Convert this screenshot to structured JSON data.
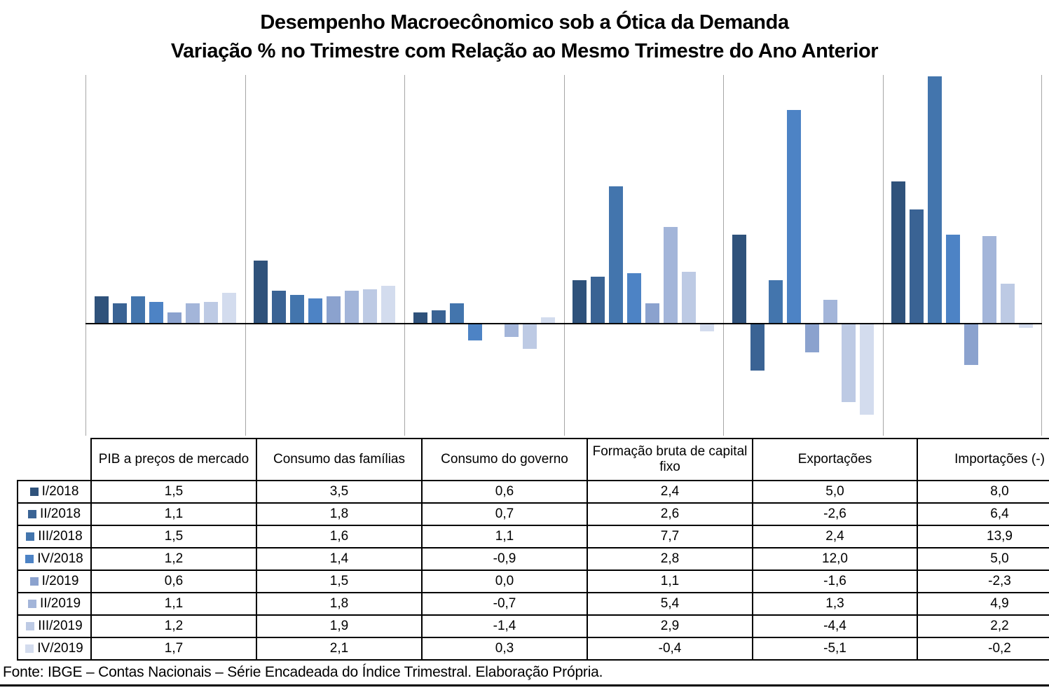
{
  "title": {
    "line1": "Desempenho Macroecônomico sob a Ótica da Demanda",
    "line2": "Variação % no Trimestre com Relação ao Mesmo Trimestre do Ano Anterior"
  },
  "chart_data": {
    "type": "bar",
    "title": "Desempenho Macroecônomico sob a Ótica da Demanda",
    "subtitle": "Variação % no Trimestre com Relação ao Mesmo Trimestre do Ano Anterior",
    "categories": [
      "PIB a preços de mercado",
      "Consumo das famílias",
      "Consumo do governo",
      "Formação bruta de capital fixo",
      "Exportações",
      "Importações (-)"
    ],
    "series": [
      {
        "name": "I/2018",
        "color": "#2F527B",
        "values": [
          1.5,
          3.5,
          0.6,
          2.4,
          5.0,
          8.0
        ]
      },
      {
        "name": "II/2018",
        "color": "#3A6394",
        "values": [
          1.1,
          1.8,
          0.7,
          2.6,
          -2.6,
          6.4
        ]
      },
      {
        "name": "III/2018",
        "color": "#4375AD",
        "values": [
          1.5,
          1.6,
          1.1,
          7.7,
          2.4,
          13.9
        ]
      },
      {
        "name": "IV/2018",
        "color": "#4D83C5",
        "values": [
          1.2,
          1.4,
          -0.9,
          2.8,
          12.0,
          5.0
        ]
      },
      {
        "name": "I/2019",
        "color": "#8BA2CE",
        "values": [
          0.6,
          1.5,
          0.0,
          1.1,
          -1.6,
          -2.3
        ]
      },
      {
        "name": "II/2019",
        "color": "#A3B5D9",
        "values": [
          1.1,
          1.8,
          -0.7,
          5.4,
          1.3,
          4.9
        ]
      },
      {
        "name": "III/2019",
        "color": "#BDCAE4",
        "values": [
          1.2,
          1.9,
          -1.4,
          2.9,
          -4.4,
          2.2
        ]
      },
      {
        "name": "IV/2019",
        "color": "#D3DCEE",
        "values": [
          1.7,
          2.1,
          0.3,
          -0.4,
          -5.1,
          -0.2
        ]
      }
    ],
    "ylim": [
      -6.3,
      14.0
    ],
    "grid": "vertical category separators only, no y-axis labels",
    "legend_position": "table rows below chart",
    "value_format": "one decimal, comma as decimal separator"
  },
  "table": {
    "corner_label": ""
  },
  "footer": {
    "text": "Fonte: IBGE – Contas Nacionais – Série Encadeada do Índice Trimestral. Elaboração Própria."
  },
  "colors": {
    "gridline": "#A6A6A6",
    "zero_line": "#000000",
    "table_border": "#000000",
    "text": "#000000"
  }
}
